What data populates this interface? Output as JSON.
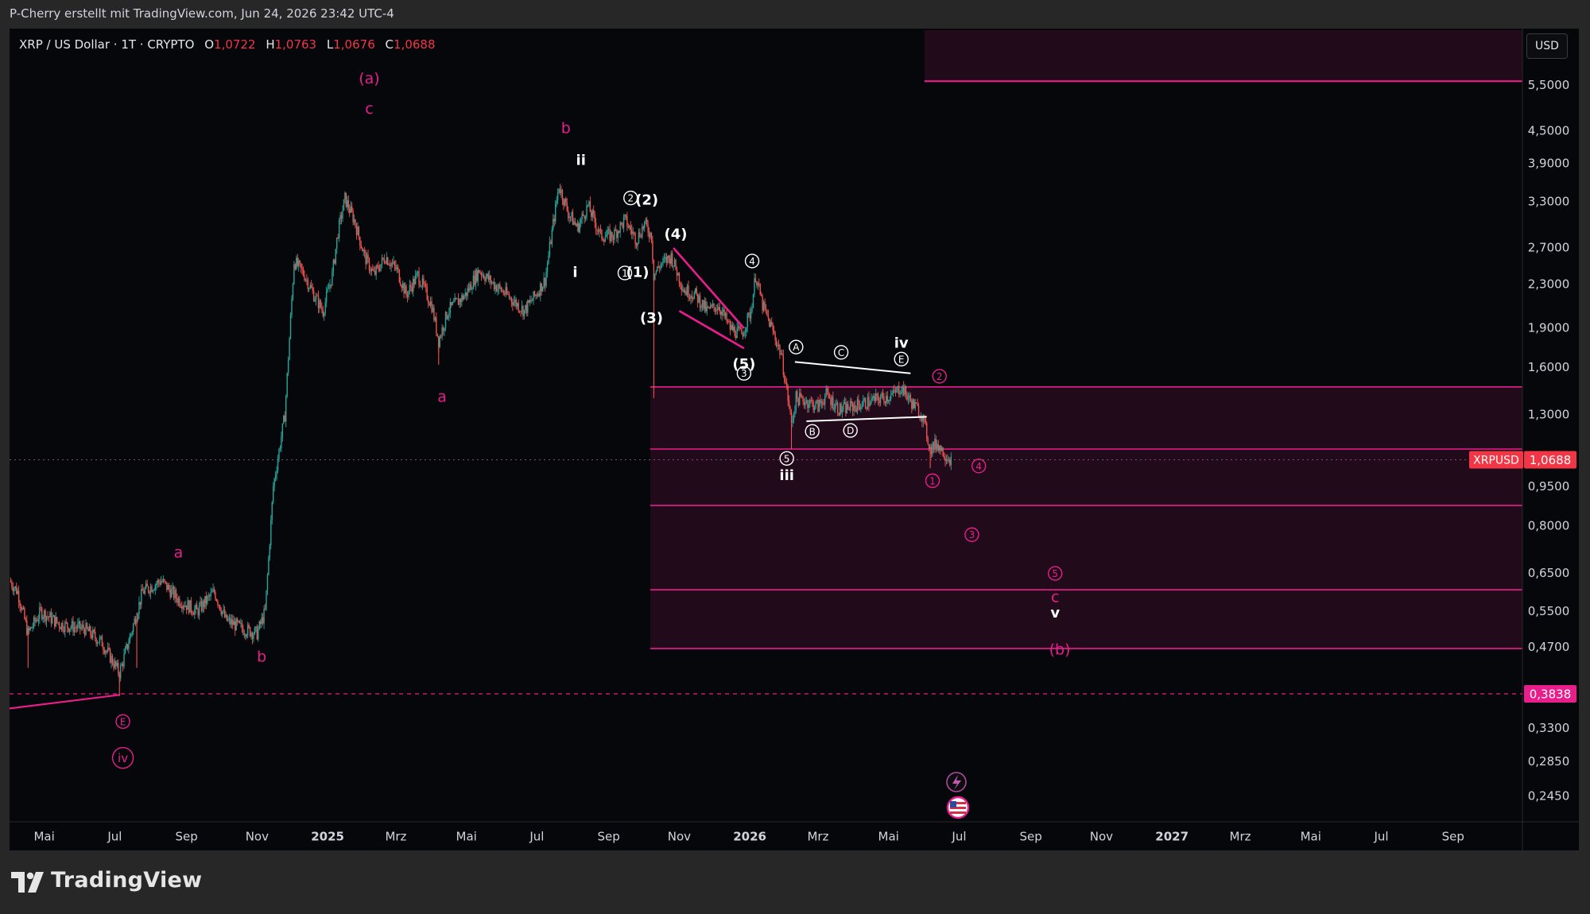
{
  "header": {
    "credit": "P-Cherry erstellt mit TradingView.com, Jun 24, 2026 23:42 UTC-4"
  },
  "symbol": {
    "name": "XRP / US Dollar · 1T · CRYPTO",
    "open_label": "O",
    "open": "1,0722",
    "high_label": "H",
    "high": "1,0763",
    "low_label": "L",
    "low": "1,0676",
    "close_label": "C",
    "close": "1,0688"
  },
  "currency": "USD",
  "brand": "TradingView",
  "colors": {
    "background": "#06070b",
    "magenta": "#e91e8c",
    "up": "#26a69a",
    "down": "#ef5350",
    "white": "#ffffff"
  },
  "chart_data": {
    "type": "candlestick",
    "scale": "log",
    "ylim": [
      0.22,
      7.0
    ],
    "y_ticks": [
      "5,5000",
      "4,5000",
      "3,9000",
      "3,3000",
      "2,7000",
      "2,3000",
      "1,9000",
      "1,6000",
      "1,3000",
      "0,9500",
      "0,8000",
      "0,6500",
      "0,5500",
      "0,4700",
      "0,3300",
      "0,2850",
      "0,2450"
    ],
    "y_tick_values": [
      5.5,
      4.5,
      3.9,
      3.3,
      2.7,
      2.3,
      1.9,
      1.6,
      1.3,
      0.95,
      0.8,
      0.65,
      0.55,
      0.47,
      0.33,
      0.285,
      0.245
    ],
    "x_ticks": [
      "Mai",
      "Jul",
      "Sep",
      "Nov",
      "2025",
      "Mrz",
      "Mai",
      "Jul",
      "Sep",
      "Nov",
      "2026",
      "Mrz",
      "Mai",
      "Jul",
      "Sep",
      "Nov",
      "2027",
      "Mrz",
      "Mai",
      "Jul",
      "Sep"
    ],
    "x_tick_bold": [
      "2025",
      "2026",
      "2027"
    ],
    "x_range": [
      "2024-04-01",
      "2027-10-31"
    ],
    "x_tick_dates": [
      "2024-05-01",
      "2024-07-01",
      "2024-09-01",
      "2024-11-01",
      "2025-01-01",
      "2025-03-01",
      "2025-05-01",
      "2025-07-01",
      "2025-09-01",
      "2025-11-01",
      "2026-01-01",
      "2026-03-01",
      "2026-05-01",
      "2026-07-01",
      "2026-09-01",
      "2026-11-01",
      "2027-01-01",
      "2027-03-01",
      "2027-05-01",
      "2027-07-01",
      "2027-09-01"
    ],
    "price_path": [
      [
        "2024-04-01",
        0.63
      ],
      [
        "2024-04-08",
        0.6
      ],
      [
        "2024-04-17",
        0.5
      ],
      [
        "2024-04-28",
        0.55
      ],
      [
        "2024-05-15",
        0.52
      ],
      [
        "2024-06-05",
        0.51
      ],
      [
        "2024-06-20",
        0.48
      ],
      [
        "2024-07-05",
        0.42
      ],
      [
        "2024-07-15",
        0.5
      ],
      [
        "2024-07-25",
        0.6
      ],
      [
        "2024-08-10",
        0.63
      ],
      [
        "2024-08-25",
        0.58
      ],
      [
        "2024-09-10",
        0.55
      ],
      [
        "2024-09-25",
        0.6
      ],
      [
        "2024-10-05",
        0.53
      ],
      [
        "2024-10-20",
        0.51
      ],
      [
        "2024-11-01",
        0.5
      ],
      [
        "2024-11-08",
        0.55
      ],
      [
        "2024-11-15",
        0.95
      ],
      [
        "2024-11-25",
        1.3
      ],
      [
        "2024-12-03",
        2.55
      ],
      [
        "2024-12-12",
        2.4
      ],
      [
        "2024-12-20",
        2.2
      ],
      [
        "2024-12-28",
        2.05
      ],
      [
        "2025-01-05",
        2.4
      ],
      [
        "2025-01-10",
        2.9
      ],
      [
        "2025-01-16",
        3.35
      ],
      [
        "2025-01-24",
        3.05
      ],
      [
        "2025-02-02",
        2.6
      ],
      [
        "2025-02-10",
        2.4
      ],
      [
        "2025-02-20",
        2.6
      ],
      [
        "2025-03-02",
        2.45
      ],
      [
        "2025-03-10",
        2.2
      ],
      [
        "2025-03-20",
        2.4
      ],
      [
        "2025-04-01",
        2.1
      ],
      [
        "2025-04-07",
        1.8
      ],
      [
        "2025-04-15",
        2.05
      ],
      [
        "2025-04-30",
        2.2
      ],
      [
        "2025-05-12",
        2.45
      ],
      [
        "2025-05-25",
        2.3
      ],
      [
        "2025-06-05",
        2.2
      ],
      [
        "2025-06-20",
        2.05
      ],
      [
        "2025-06-30",
        2.2
      ],
      [
        "2025-07-08",
        2.35
      ],
      [
        "2025-07-15",
        3.0
      ],
      [
        "2025-07-20",
        3.55
      ],
      [
        "2025-07-28",
        3.15
      ],
      [
        "2025-08-05",
        2.95
      ],
      [
        "2025-08-14",
        3.25
      ],
      [
        "2025-08-25",
        2.85
      ],
      [
        "2025-09-05",
        2.85
      ],
      [
        "2025-09-15",
        3.05
      ],
      [
        "2025-09-25",
        2.8
      ],
      [
        "2025-10-02",
        3.0
      ],
      [
        "2025-10-08",
        2.85
      ],
      [
        "2025-10-10",
        2.4
      ],
      [
        "2025-10-15",
        2.5
      ],
      [
        "2025-10-25",
        2.6
      ],
      [
        "2025-11-05",
        2.25
      ],
      [
        "2025-11-15",
        2.2
      ],
      [
        "2025-11-25",
        2.05
      ],
      [
        "2025-12-05",
        2.1
      ],
      [
        "2025-12-15",
        1.9
      ],
      [
        "2025-12-25",
        1.85
      ],
      [
        "2026-01-02",
        2.05
      ],
      [
        "2026-01-06",
        2.4
      ],
      [
        "2026-01-12",
        2.1
      ],
      [
        "2026-01-20",
        1.9
      ],
      [
        "2026-01-28",
        1.7
      ],
      [
        "2026-02-02",
        1.45
      ],
      [
        "2026-02-06",
        1.25
      ],
      [
        "2026-02-10",
        1.4
      ],
      [
        "2026-02-20",
        1.38
      ],
      [
        "2026-03-01",
        1.35
      ],
      [
        "2026-03-08",
        1.42
      ],
      [
        "2026-03-20",
        1.33
      ],
      [
        "2026-04-01",
        1.35
      ],
      [
        "2026-04-15",
        1.38
      ],
      [
        "2026-04-25",
        1.4
      ],
      [
        "2026-05-05",
        1.42
      ],
      [
        "2026-05-12",
        1.47
      ],
      [
        "2026-05-20",
        1.38
      ],
      [
        "2026-05-30",
        1.3
      ],
      [
        "2026-06-06",
        1.12
      ],
      [
        "2026-06-12",
        1.15
      ],
      [
        "2026-06-18",
        1.1
      ],
      [
        "2026-06-24",
        1.069
      ]
    ],
    "spikes": [
      [
        "2024-04-17",
        0.43
      ],
      [
        "2024-07-05",
        0.38
      ],
      [
        "2024-07-20",
        0.43
      ],
      [
        "2025-04-07",
        1.62
      ],
      [
        "2025-10-10",
        1.4
      ],
      [
        "2026-02-06",
        1.12
      ],
      [
        "2026-06-06",
        1.03
      ]
    ],
    "zones": [
      {
        "from": "2026-06-01",
        "to": "2027-10-31",
        "high": 7.0,
        "low": 5.6
      },
      {
        "from": "2025-10-07",
        "to": "2027-10-31",
        "high": 1.47,
        "low": 0.466
      }
    ],
    "zone_lines": [
      1.47,
      1.12,
      0.875,
      0.605,
      0.468
    ],
    "resistance_line": 5.6,
    "support": {
      "value": 0.3838,
      "label": "0,3838"
    },
    "support_trend": [
      [
        "2024-04-01",
        0.36
      ],
      [
        "2024-07-05",
        0.382
      ]
    ],
    "last_price": {
      "symbol": "XRPUSD",
      "value": 1.0688,
      "label": "1,0688"
    },
    "trendlines_white": [
      [
        [
          "2026-02-09",
          1.64
        ],
        [
          "2026-05-20",
          1.56
        ]
      ],
      [
        [
          "2026-02-19",
          1.265
        ],
        [
          "2026-06-03",
          1.29
        ]
      ]
    ],
    "trendlines_magenta": [
      [
        [
          "2025-10-27",
          2.7
        ],
        [
          "2025-12-27",
          1.9
        ]
      ],
      [
        [
          "2025-11-01",
          2.05
        ],
        [
          "2025-12-27",
          1.74
        ]
      ]
    ],
    "annotations_magenta": [
      {
        "t": "2025-02-06",
        "v": 5.65,
        "text": "(a)"
      },
      {
        "t": "2025-02-06",
        "v": 4.95,
        "text": "c"
      },
      {
        "t": "2025-07-26",
        "v": 4.55,
        "text": "b"
      },
      {
        "t": "2025-04-10",
        "v": 1.405,
        "text": "a"
      },
      {
        "t": "2024-08-25",
        "v": 0.71,
        "text": "a"
      },
      {
        "t": "2024-11-05",
        "v": 0.45,
        "text": "b"
      },
      {
        "t": "2026-09-22",
        "v": 0.585,
        "text": "c"
      },
      {
        "t": "2026-09-26",
        "v": 0.465,
        "text": "(b)"
      }
    ],
    "circled_magenta": [
      {
        "t": "2024-07-08",
        "v": 0.34,
        "text": "E"
      },
      {
        "t": "2024-07-08",
        "v": 0.29,
        "text": "iv"
      },
      {
        "t": "2026-06-14",
        "v": 1.54,
        "text": "2"
      },
      {
        "t": "2026-06-08",
        "v": 0.975,
        "text": "1"
      },
      {
        "t": "2026-07-18",
        "v": 1.04,
        "text": "4"
      },
      {
        "t": "2026-07-12",
        "v": 0.77,
        "text": "3"
      },
      {
        "t": "2026-09-22",
        "v": 0.65,
        "text": "5"
      }
    ],
    "annotations_white": [
      {
        "t": "2025-08-08",
        "v": 3.95,
        "text": "ii"
      },
      {
        "t": "2025-08-03",
        "v": 2.42,
        "text": "i"
      },
      {
        "t": "2025-09-26",
        "v": 2.42,
        "text": "(1)"
      },
      {
        "t": "2025-10-04",
        "v": 3.32,
        "text": "(2)"
      },
      {
        "t": "2025-10-08",
        "v": 1.98,
        "text": "(3)"
      },
      {
        "t": "2025-10-29",
        "v": 2.86,
        "text": "(4)"
      },
      {
        "t": "2025-12-27",
        "v": 1.62,
        "text": "(5)"
      },
      {
        "t": "2026-05-12",
        "v": 1.775,
        "text": "iv"
      },
      {
        "t": "2026-02-02",
        "v": 0.995,
        "text": "iii"
      },
      {
        "t": "2026-09-22",
        "v": 0.545,
        "text": "v"
      }
    ],
    "circled_white": [
      {
        "t": "2025-09-20",
        "v": 3.36,
        "text": "2"
      },
      {
        "t": "2025-09-15",
        "v": 2.42,
        "text": "1"
      },
      {
        "t": "2026-01-03",
        "v": 2.55,
        "text": "4"
      },
      {
        "t": "2025-12-27",
        "v": 1.56,
        "text": "3"
      },
      {
        "t": "2026-02-10",
        "v": 1.75,
        "text": "A"
      },
      {
        "t": "2026-03-21",
        "v": 1.71,
        "text": "C"
      },
      {
        "t": "2026-05-12",
        "v": 1.66,
        "text": "E"
      },
      {
        "t": "2026-02-24",
        "v": 1.21,
        "text": "B"
      },
      {
        "t": "2026-03-29",
        "v": 1.215,
        "text": "D"
      },
      {
        "t": "2026-02-02",
        "v": 1.075,
        "text": "5"
      }
    ]
  }
}
